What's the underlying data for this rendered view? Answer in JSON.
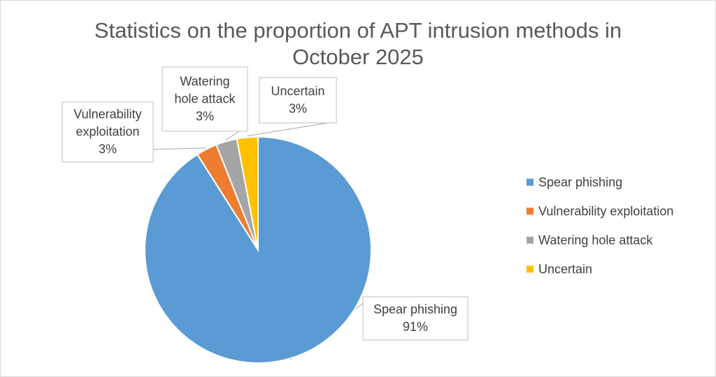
{
  "chart_data": {
    "type": "pie",
    "title_lines": [
      "Statistics on the proportion of APT intrusion methods in",
      "October 2025"
    ],
    "categories": [
      "Spear phishing",
      "Vulnerability exploitation",
      "Watering hole attack",
      "Uncertain"
    ],
    "values": [
      91,
      3,
      3,
      3
    ],
    "percent_labels": [
      "91%",
      "3%",
      "3%",
      "3%"
    ],
    "data_label_lines": [
      [
        "Spear phishing",
        "91%"
      ],
      [
        "Vulnerability",
        "exploitation",
        "3%"
      ],
      [
        "Watering",
        "hole attack",
        "3%"
      ],
      [
        "Uncertain",
        "3%"
      ]
    ],
    "colors": [
      "#5b9bd5",
      "#ed7d31",
      "#a5a5a5",
      "#ffc000"
    ],
    "legend_position": "right",
    "start_angle": "12 o'clock",
    "direction": "clockwise"
  }
}
